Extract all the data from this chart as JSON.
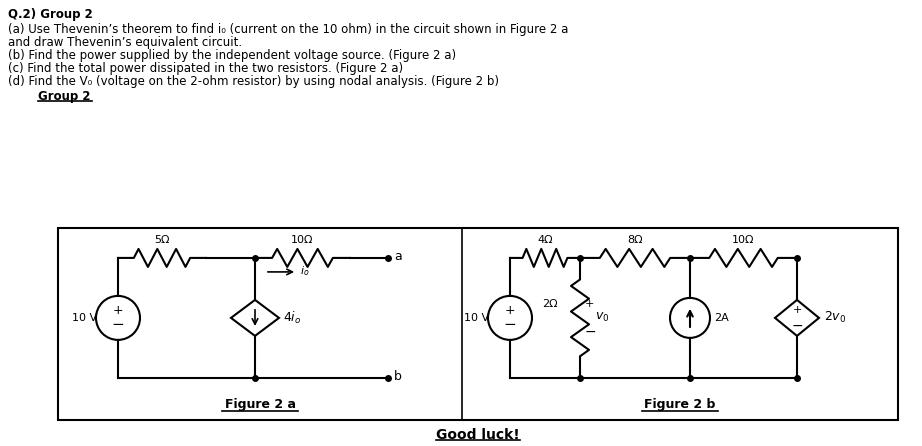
{
  "title_text": "Q.2) Group 2",
  "line1": "(a) Use Thevenin’s theorem to find i₀ (current on the 10 ohm) in the circuit shown in Figure 2 a",
  "line2": "and draw Thevenin’s equivalent circuit.",
  "line3": "(b) Find the power supplied by the independent voltage source. (Figure 2 a)",
  "line4": "(c) Find the total power dissipated in the two resistors. (Figure 2 a)",
  "line5": "(d) Find the V₀ (voltage on the 2-ohm resistor) by using nodal analysis. (Figure 2 b)",
  "group2_label": "Group 2",
  "fig2a_label": "Figure 2 a",
  "fig2b_label": "Figure 2 b",
  "good_luck": "Good luck!",
  "bg_color": "#ffffff",
  "box_color": "#000000",
  "text_color": "#000000"
}
